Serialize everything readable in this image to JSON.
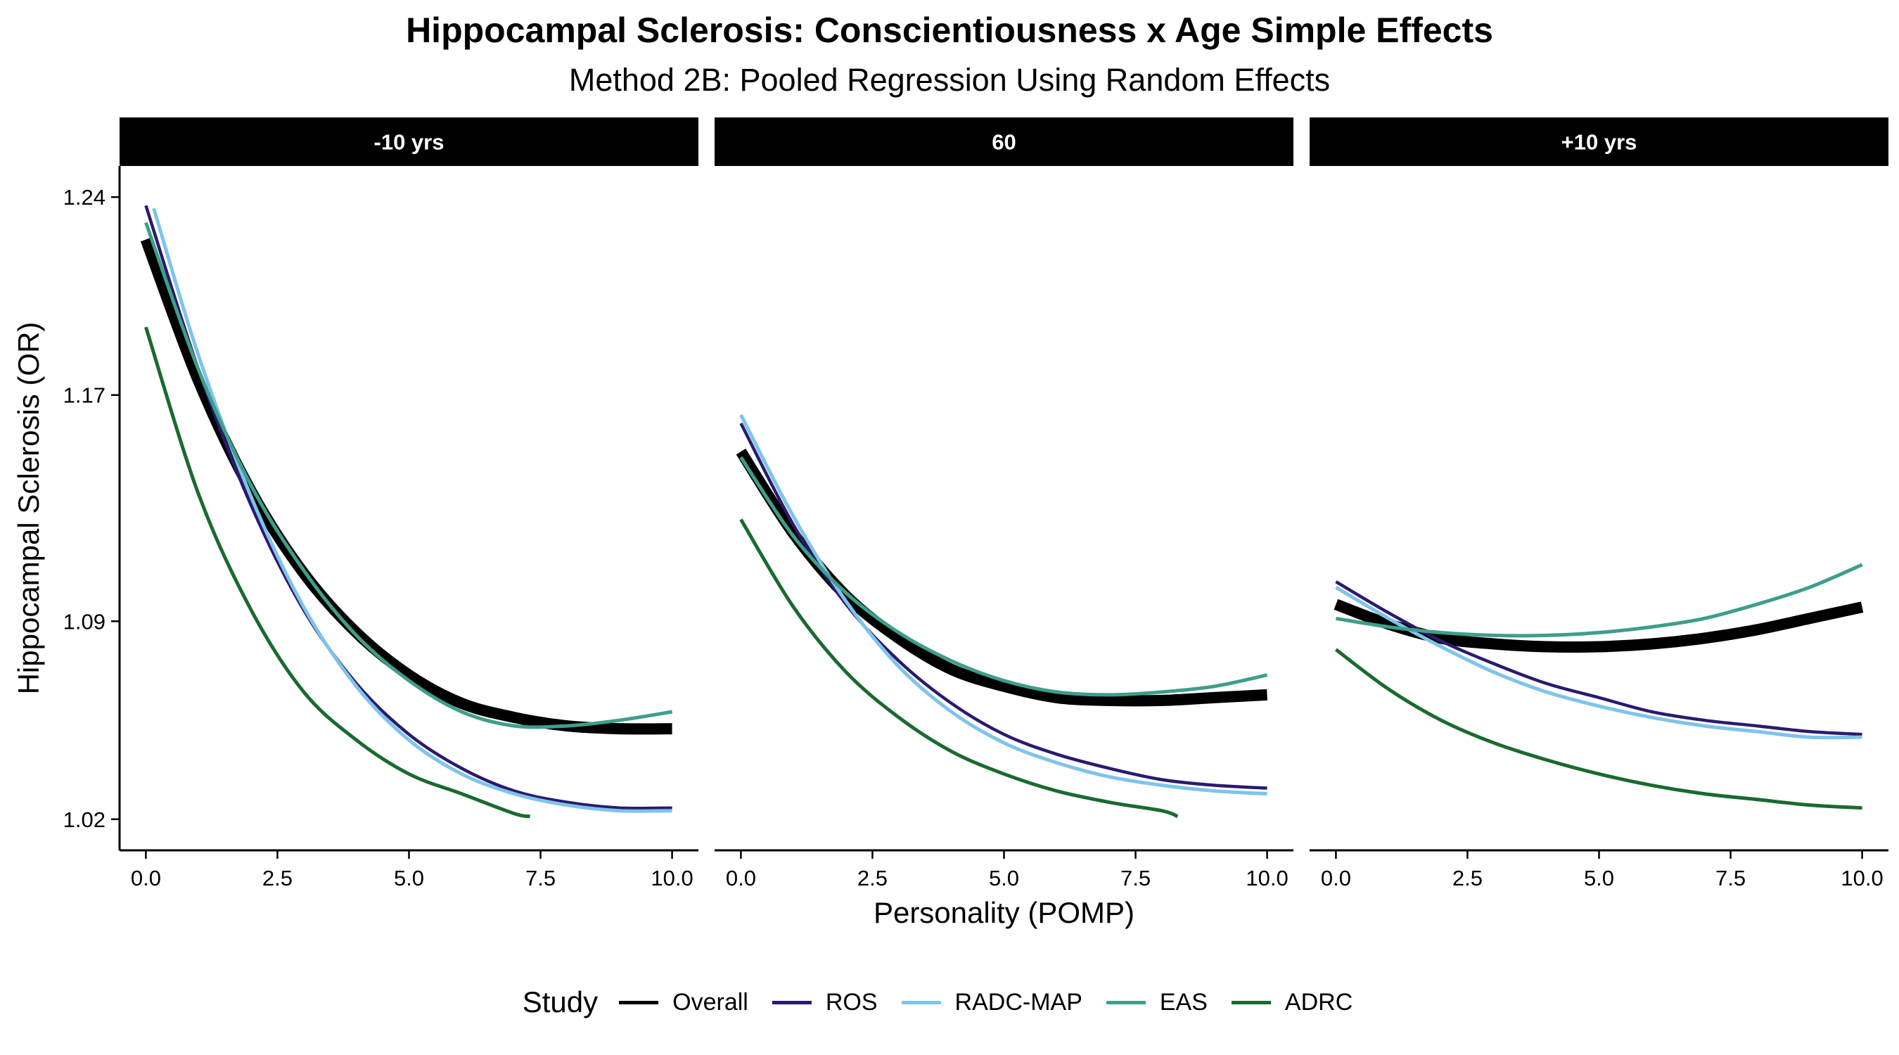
{
  "chart_data": {
    "type": "line",
    "title": "Hippocampal Sclerosis: Conscientiousness x Age Simple Effects",
    "subtitle": "Method 2B: Pooled Regression Using Random Effects",
    "xlabel": "Personality (POMP)",
    "ylabel": "Hippocampal Sclerosis (OR)",
    "xlim": [
      -0.5,
      10.5
    ],
    "ylim": [
      1.009,
      1.251
    ],
    "x_ticks": [
      "0.0",
      "2.5",
      "5.0",
      "7.5",
      "10.0"
    ],
    "y_ticks": [
      "1.02",
      "1.09",
      "1.17",
      "1.24"
    ],
    "grid": false,
    "legend": {
      "title": "Study",
      "position": "bottom",
      "entries": [
        "Overall",
        "ROS",
        "RADC-MAP",
        "EAS",
        "ADRC"
      ]
    },
    "colors": {
      "Overall": "#000000",
      "ROS": "#2a1a6e",
      "RADC-MAP": "#7ec4ea",
      "EAS": "#3e9e8a",
      "ADRC": "#1a6a30"
    },
    "facets": [
      {
        "label": "-10 yrs",
        "series": [
          {
            "name": "Overall",
            "x": [
              0,
              1,
              2,
              3,
              4,
              5,
              6,
              7,
              8,
              9,
              10
            ],
            "y": [
              1.225,
              1.175,
              1.136,
              1.107,
              1.086,
              1.071,
              1.061,
              1.056,
              1.053,
              1.052,
              1.052
            ]
          },
          {
            "name": "ROS",
            "x": [
              0,
              1,
              2,
              3,
              4,
              5,
              6,
              7,
              8,
              9,
              10
            ],
            "y": [
              1.237,
              1.179,
              1.131,
              1.094,
              1.068,
              1.05,
              1.038,
              1.03,
              1.026,
              1.024,
              1.024
            ]
          },
          {
            "name": "RADC-MAP",
            "x": [
              0.15,
              1,
              2,
              3,
              4,
              5,
              6,
              7,
              8,
              9,
              10
            ],
            "y": [
              1.236,
              1.184,
              1.134,
              1.095,
              1.067,
              1.048,
              1.036,
              1.029,
              1.025,
              1.023,
              1.023
            ]
          },
          {
            "name": "EAS",
            "x": [
              0,
              1,
              2,
              3,
              4,
              5,
              6,
              7,
              8,
              9,
              10
            ],
            "y": [
              1.231,
              1.179,
              1.138,
              1.108,
              1.085,
              1.069,
              1.058,
              1.053,
              1.053,
              1.055,
              1.058
            ]
          },
          {
            "name": "ADRC",
            "x": [
              0,
              1,
              2,
              3,
              4,
              5,
              6,
              7,
              7.3
            ],
            "y": [
              1.194,
              1.135,
              1.094,
              1.065,
              1.048,
              1.036,
              1.029,
              1.022,
              1.021
            ]
          }
        ]
      },
      {
        "label": "60",
        "series": [
          {
            "name": "Overall",
            "x": [
              0,
              1,
              2,
              3,
              4,
              5,
              6,
              7,
              8,
              9,
              10
            ],
            "y": [
              1.15,
              1.121,
              1.099,
              1.084,
              1.073,
              1.067,
              1.063,
              1.062,
              1.062,
              1.063,
              1.064
            ]
          },
          {
            "name": "ROS",
            "x": [
              0,
              1,
              2,
              3,
              4,
              5,
              6,
              7,
              8,
              9,
              10
            ],
            "y": [
              1.16,
              1.124,
              1.096,
              1.076,
              1.061,
              1.05,
              1.043,
              1.038,
              1.034,
              1.032,
              1.031
            ]
          },
          {
            "name": "RADC-MAP",
            "x": [
              0,
              1,
              2,
              3,
              4,
              5,
              6,
              7,
              8,
              9,
              10
            ],
            "y": [
              1.163,
              1.127,
              1.097,
              1.074,
              1.058,
              1.047,
              1.04,
              1.035,
              1.032,
              1.03,
              1.029
            ]
          },
          {
            "name": "EAS",
            "x": [
              0,
              1,
              2,
              3,
              4,
              5,
              6,
              7,
              8,
              9,
              10
            ],
            "y": [
              1.148,
              1.12,
              1.1,
              1.086,
              1.076,
              1.069,
              1.065,
              1.064,
              1.065,
              1.067,
              1.071
            ]
          },
          {
            "name": "ADRC",
            "x": [
              0,
              1,
              2,
              3,
              4,
              5,
              6,
              7,
              8,
              8.3
            ],
            "y": [
              1.126,
              1.095,
              1.072,
              1.056,
              1.044,
              1.036,
              1.03,
              1.026,
              1.023,
              1.021
            ]
          }
        ]
      },
      {
        "label": "+10 yrs",
        "series": [
          {
            "name": "Overall",
            "x": [
              0,
              1,
              2,
              3,
              4,
              5,
              6,
              7,
              8,
              9,
              10
            ],
            "y": [
              1.096,
              1.089,
              1.084,
              1.082,
              1.081,
              1.081,
              1.082,
              1.084,
              1.087,
              1.091,
              1.095
            ]
          },
          {
            "name": "ROS",
            "x": [
              0,
              1,
              2,
              3,
              4,
              5,
              6,
              7,
              8,
              9,
              10
            ],
            "y": [
              1.104,
              1.093,
              1.083,
              1.075,
              1.068,
              1.063,
              1.058,
              1.055,
              1.053,
              1.051,
              1.05
            ]
          },
          {
            "name": "RADC-MAP",
            "x": [
              0,
              1,
              2,
              3,
              4,
              5,
              6,
              7,
              8,
              9,
              10
            ],
            "y": [
              1.102,
              1.091,
              1.081,
              1.072,
              1.065,
              1.06,
              1.056,
              1.053,
              1.051,
              1.049,
              1.049
            ]
          },
          {
            "name": "EAS",
            "x": [
              0,
              1,
              2,
              3,
              4,
              5,
              6,
              7,
              8,
              9,
              10
            ],
            "y": [
              1.091,
              1.088,
              1.086,
              1.085,
              1.085,
              1.086,
              1.088,
              1.091,
              1.096,
              1.102,
              1.11
            ]
          },
          {
            "name": "ADRC",
            "x": [
              0,
              1,
              2,
              3,
              4,
              5,
              6,
              7,
              8,
              9,
              10
            ],
            "y": [
              1.08,
              1.066,
              1.055,
              1.047,
              1.041,
              1.036,
              1.032,
              1.029,
              1.027,
              1.025,
              1.024
            ]
          }
        ]
      }
    ]
  }
}
